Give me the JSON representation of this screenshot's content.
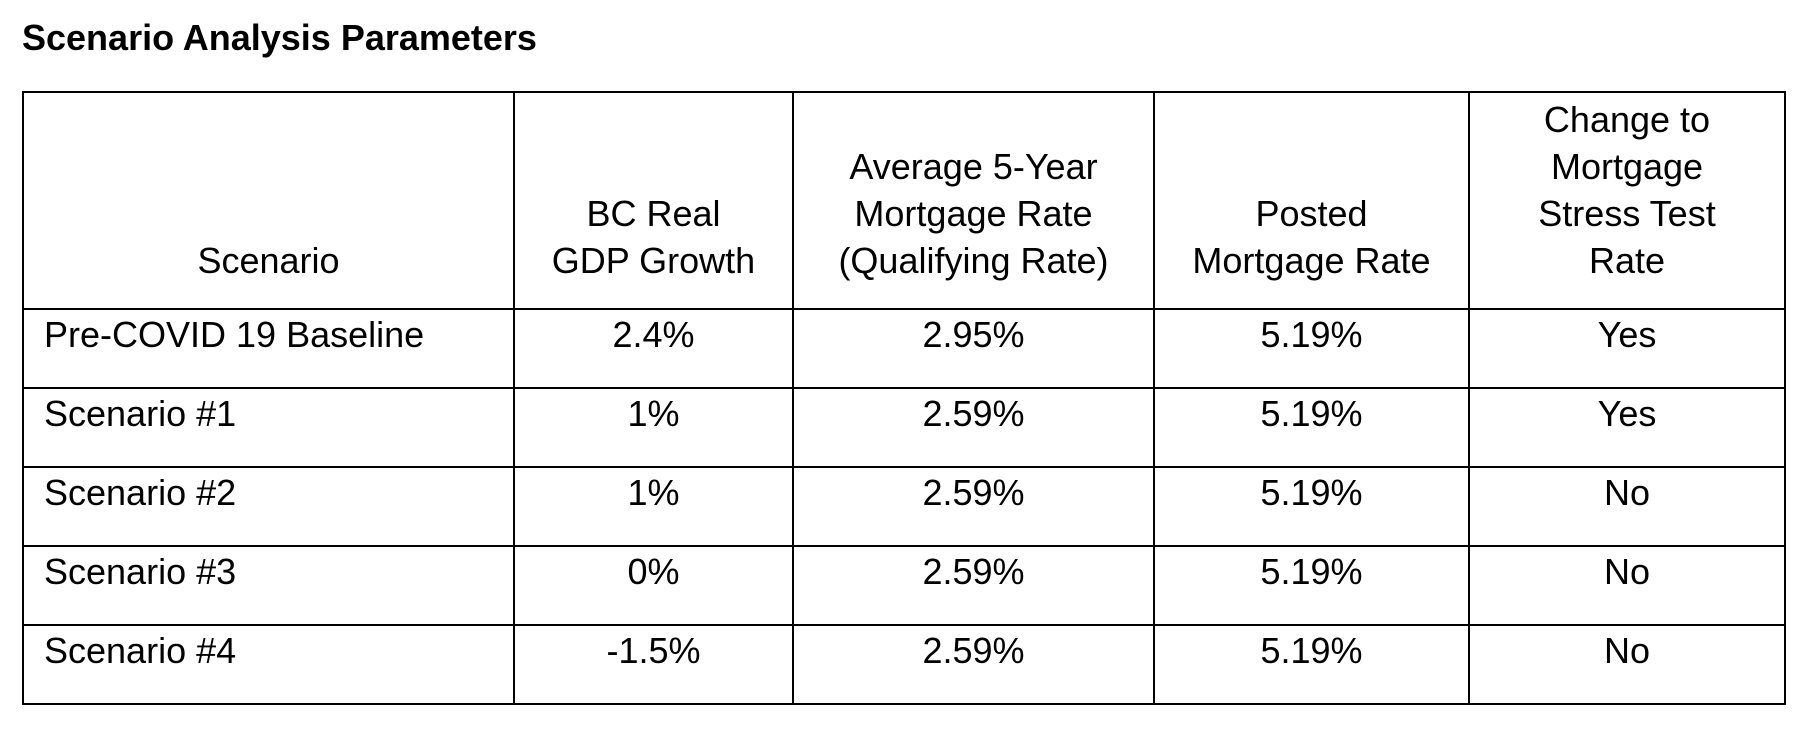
{
  "title": "Scenario Analysis Parameters",
  "columns": [
    "Scenario",
    "BC Real\nGDP Growth",
    "Average 5-Year\nMortgage Rate\n(Qualifying Rate)",
    "Posted\nMortgage Rate",
    "Change to\nMortgage\nStress Test\nRate"
  ],
  "rows": [
    {
      "scenario": "Pre-COVID 19 Baseline",
      "gdp_growth": "2.4%",
      "avg_5yr_rate": "2.95%",
      "posted_rate": "5.19%",
      "stress_test_change": "Yes"
    },
    {
      "scenario": "Scenario #1",
      "gdp_growth": "1%",
      "avg_5yr_rate": "2.59%",
      "posted_rate": "5.19%",
      "stress_test_change": "Yes"
    },
    {
      "scenario": "Scenario #2",
      "gdp_growth": "1%",
      "avg_5yr_rate": "2.59%",
      "posted_rate": "5.19%",
      "stress_test_change": "No"
    },
    {
      "scenario": "Scenario #3",
      "gdp_growth": "0%",
      "avg_5yr_rate": "2.59%",
      "posted_rate": "5.19%",
      "stress_test_change": "No"
    },
    {
      "scenario": "Scenario #4",
      "gdp_growth": "-1.5%",
      "avg_5yr_rate": "2.59%",
      "posted_rate": "5.19%",
      "stress_test_change": "No"
    }
  ]
}
